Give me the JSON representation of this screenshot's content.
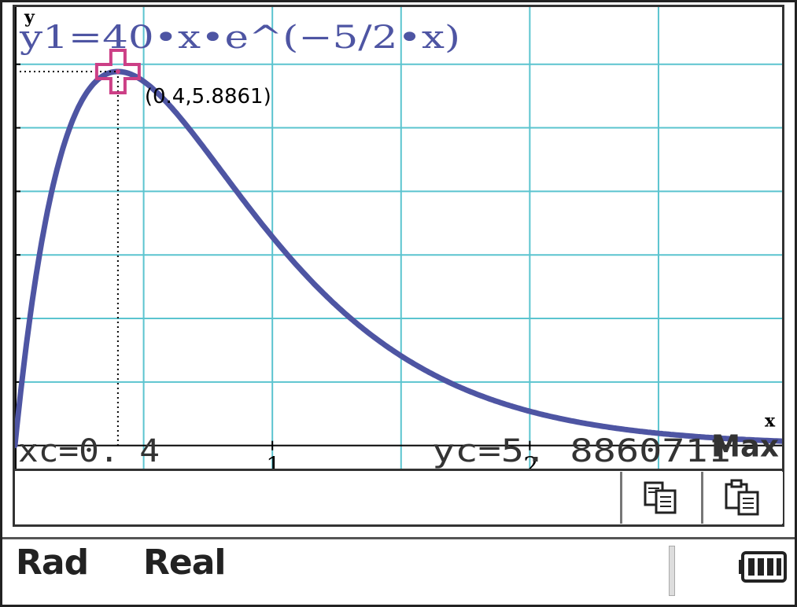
{
  "graph": {
    "function_label": "y1=40•x•e^(−5/2•x)",
    "y_axis_label": "y",
    "x_axis_label": "x",
    "point_label": "(0.4,5.8861)",
    "mode_label": "Max",
    "xc_readout": "xc=0. 4",
    "yc_readout": "yc=5. 8860711",
    "colors": {
      "grid": "#5bc4cf",
      "curve": "#4e55a3",
      "cursor": "#cc3f86",
      "function_text": "#4e55a3",
      "axis": "#000000"
    }
  },
  "chart_data": {
    "type": "line",
    "title": "",
    "xlabel": "x",
    "ylabel": "y",
    "xlim": [
      0,
      2.98
    ],
    "ylim": [
      -0.4,
      6.9
    ],
    "x_ticks": [
      1,
      2
    ],
    "x_tick_labels": [
      "1",
      "2"
    ],
    "grid": true,
    "series": [
      {
        "name": "y1",
        "expression": "40*x*exp(-5/2*x)",
        "x_range": [
          0,
          2.98
        ]
      }
    ],
    "marked_point": {
      "x": 0.4,
      "y": 5.8861
    }
  },
  "toolbar": {
    "copy_icon": "copy-icon",
    "paste_icon": "paste-icon"
  },
  "status": {
    "angle_mode": "Rad",
    "number_mode": "Real",
    "battery_icon": "battery-icon"
  }
}
